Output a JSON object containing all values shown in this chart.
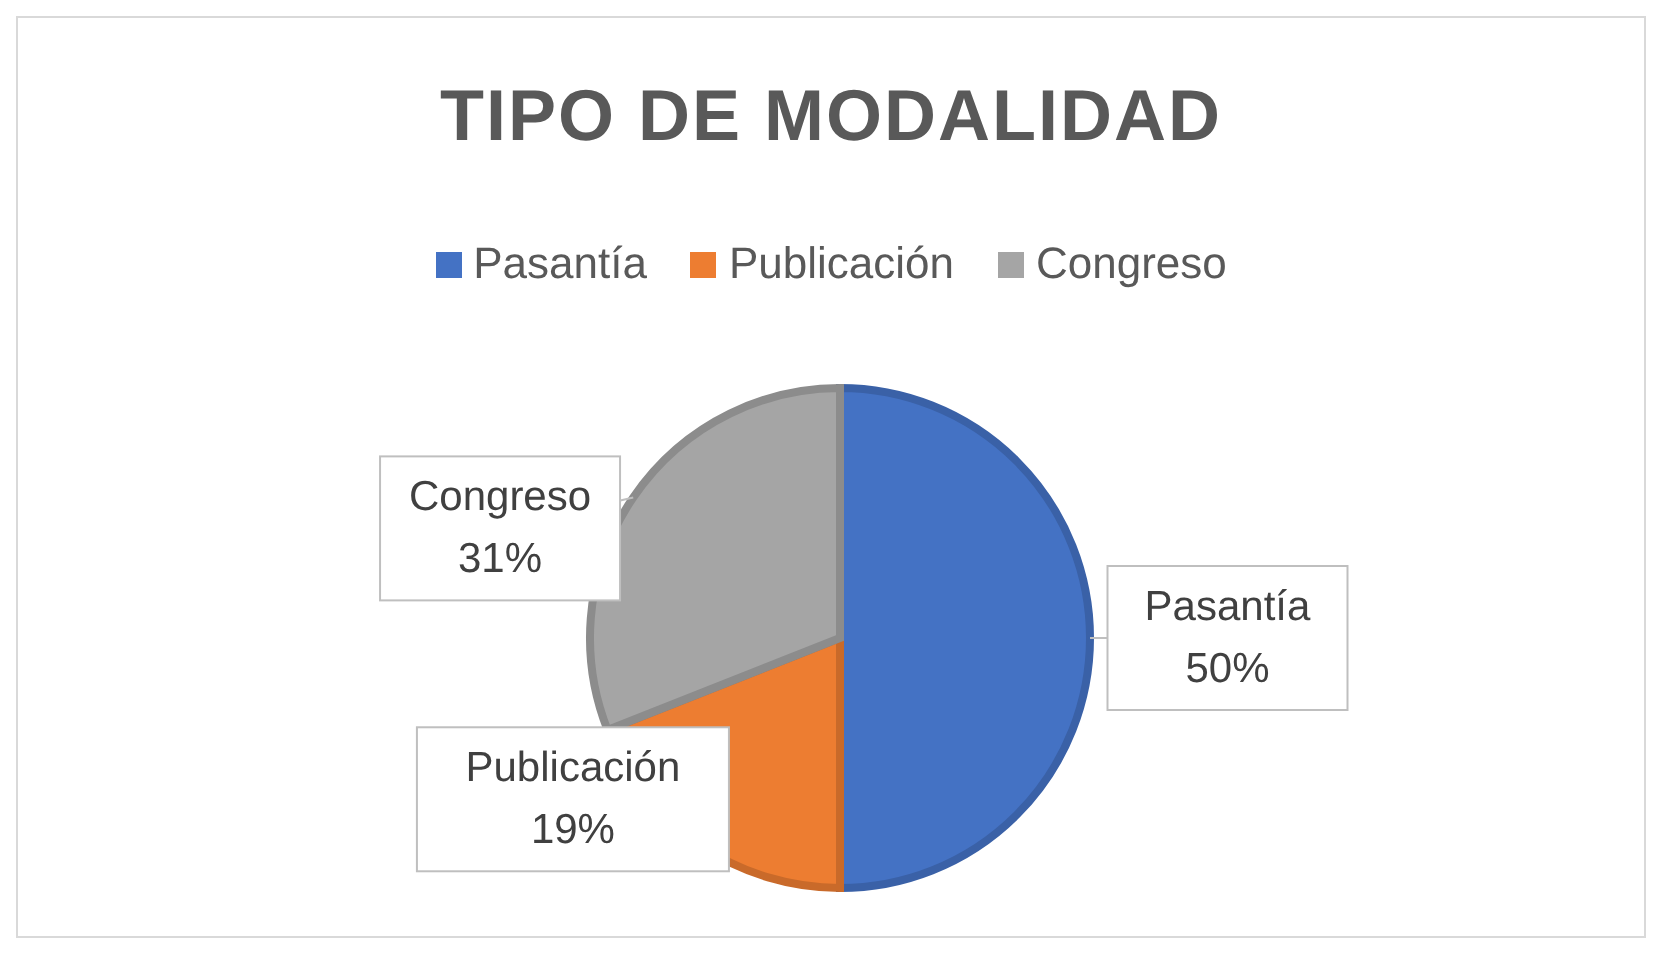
{
  "chart_data": {
    "type": "pie",
    "title": "TIPO DE MODALIDAD",
    "categories": [
      "Pasantía",
      "Publicación",
      "Congreso"
    ],
    "values": [
      50,
      19,
      31
    ],
    "colors": [
      "#4472c4",
      "#ed7d31",
      "#a5a5a5"
    ],
    "value_labels": [
      "50%",
      "19%",
      "31%"
    ],
    "legend": "top"
  }
}
